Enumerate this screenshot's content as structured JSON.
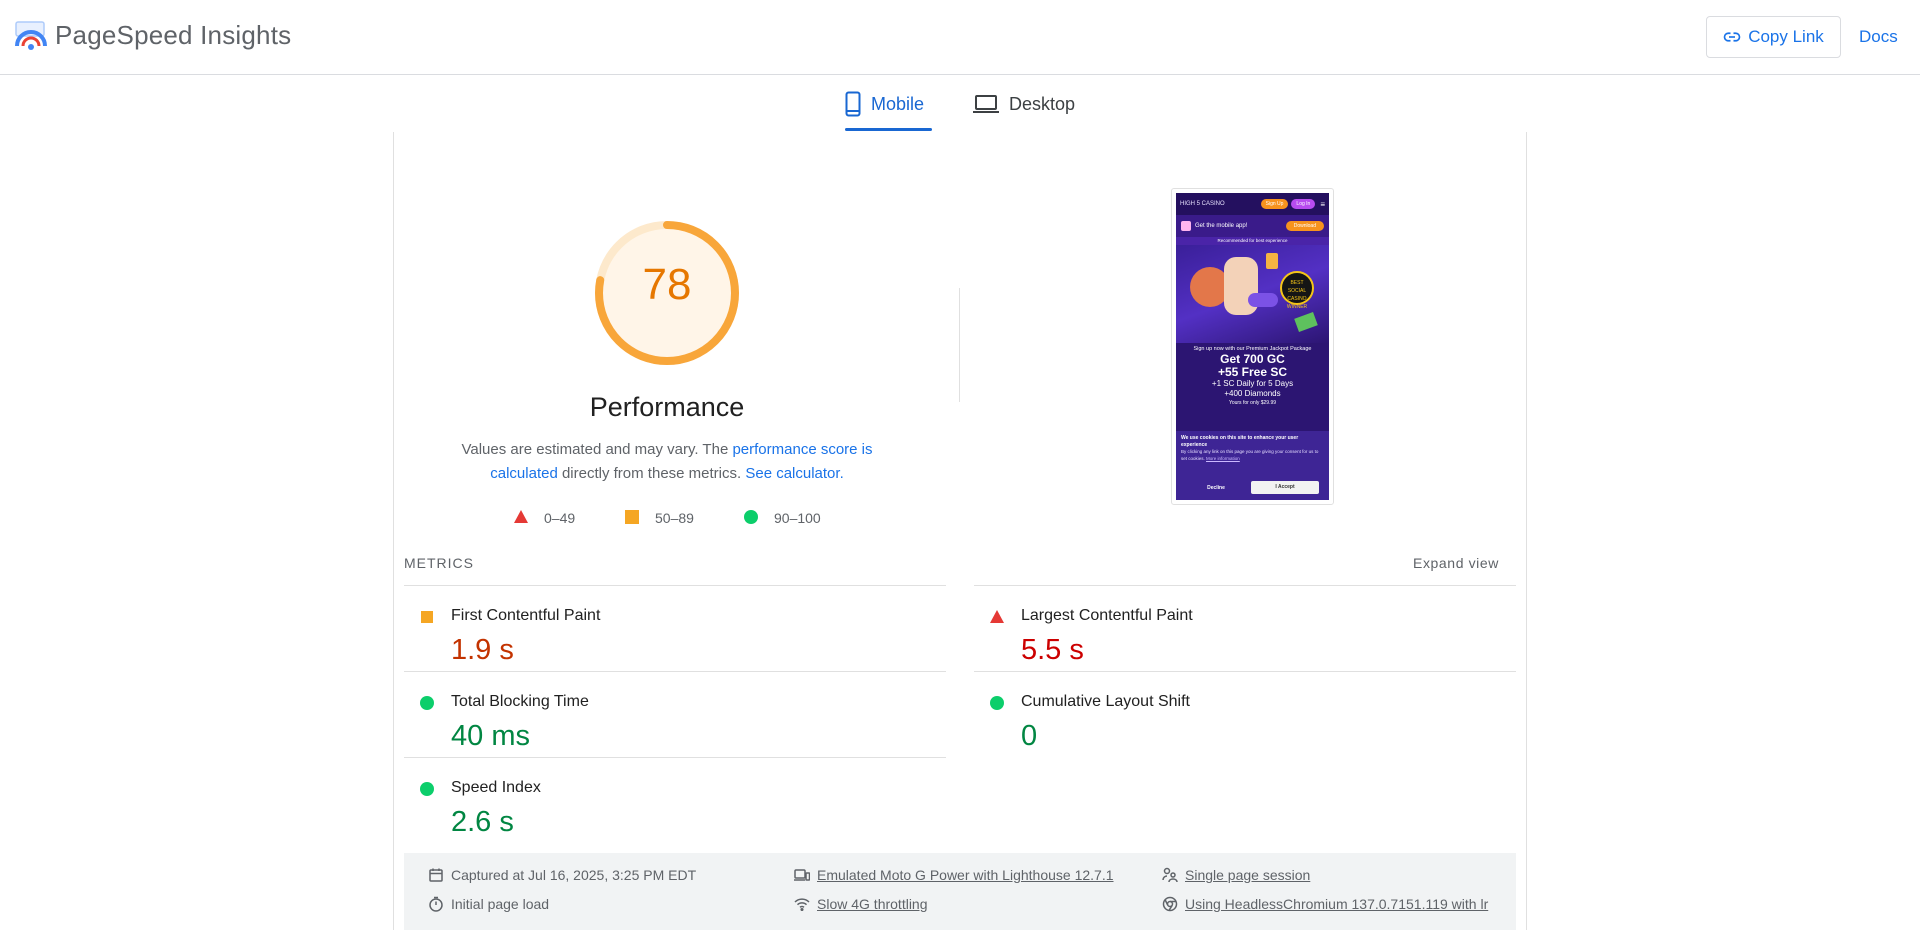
{
  "header": {
    "app_title": "PageSpeed Insights",
    "copy_link_label": "Copy Link",
    "docs_label": "Docs"
  },
  "tabs": [
    {
      "label": "Mobile",
      "icon": "smartphone-icon",
      "selected": true
    },
    {
      "label": "Desktop",
      "icon": "laptop-icon",
      "selected": false
    }
  ],
  "performance": {
    "score": "78",
    "score_value": 78,
    "title": "Performance",
    "desc_before": "Values are estimated and may vary. The ",
    "desc_link1": "performance score is calculated",
    "desc_middle": " directly from these metrics. ",
    "desc_link2": "See calculator."
  },
  "legend": [
    {
      "range": "0–49",
      "shape": "triangle",
      "color": "#e53935"
    },
    {
      "range": "50–89",
      "shape": "square",
      "color": "#f5a623"
    },
    {
      "range": "90–100",
      "shape": "circle",
      "color": "#0cce6b"
    }
  ],
  "screenshot": {
    "brand": "HIGH 5 CASINO",
    "signup": "Sign Up",
    "login": "Log In",
    "app_text": "Get the mobile app!",
    "download": "Download",
    "recommended": "Recommended for best experience",
    "badge_text": "BEST SOCIAL CASINO WINNER",
    "line1": "Sign up now with our Premium Jackpot Package",
    "line2": "Get 700 GC",
    "line3": "+55 Free SC",
    "line4": "+1 SC Daily for 5 Days",
    "line5": "+400 Diamonds",
    "line6": "Yours for only $29.99",
    "cookie_title": "We use cookies on this site to enhance your user experience",
    "cookie_body": "By clicking any link on this page you are giving your consent for us to set cookies.",
    "cookie_more": "More information",
    "decline": "Decline",
    "accept": "I Accept"
  },
  "metrics": {
    "section_label": "METRICS",
    "expand_label": "Expand view",
    "items": [
      {
        "name": "First Contentful Paint",
        "value": "1.9 s",
        "rating": "average"
      },
      {
        "name": "Largest Contentful Paint",
        "value": "5.5 s",
        "rating": "fail"
      },
      {
        "name": "Total Blocking Time",
        "value": "40 ms",
        "rating": "pass"
      },
      {
        "name": "Cumulative Layout Shift",
        "value": "0",
        "rating": "pass"
      },
      {
        "name": "Speed Index",
        "value": "2.6 s",
        "rating": "pass"
      }
    ]
  },
  "info": {
    "captured": "Captured at Jul 16, 2025, 3:25 PM EDT",
    "emulated": "Emulated Moto G Power with Lighthouse 12.7.1",
    "session": "Single page session",
    "initial_load": "Initial page load",
    "throttling": "Slow 4G throttling",
    "browser": "Using HeadlessChromium 137.0.7151.119 with lr"
  },
  "colors": {
    "accent": "#1a73e8",
    "average": "#f5a623",
    "fail": "#e53935",
    "pass": "#0cce6b"
  }
}
